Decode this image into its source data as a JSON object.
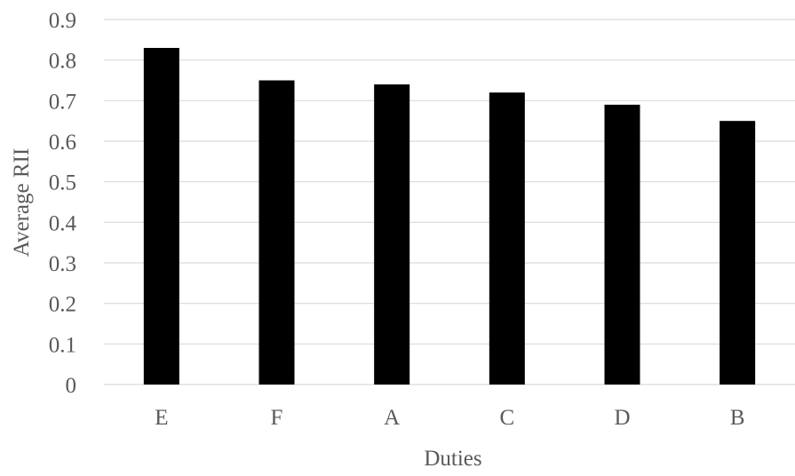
{
  "chart_data": {
    "type": "bar",
    "categories": [
      "E",
      "F",
      "A",
      "C",
      "D",
      "B"
    ],
    "values": [
      0.83,
      0.75,
      0.74,
      0.72,
      0.69,
      0.65
    ],
    "title": "",
    "xlabel": "Duties",
    "ylabel": "Average RII",
    "ylim": [
      0,
      0.9
    ],
    "yticks": [
      "0",
      "0.1",
      "0.2",
      "0.3",
      "0.4",
      "0.5",
      "0.6",
      "0.7",
      "0.8",
      "0.9"
    ],
    "grid": true,
    "legend": "none",
    "bar_color": "#000000",
    "grid_color": "#d9d9d9",
    "text_color": "#595959"
  }
}
